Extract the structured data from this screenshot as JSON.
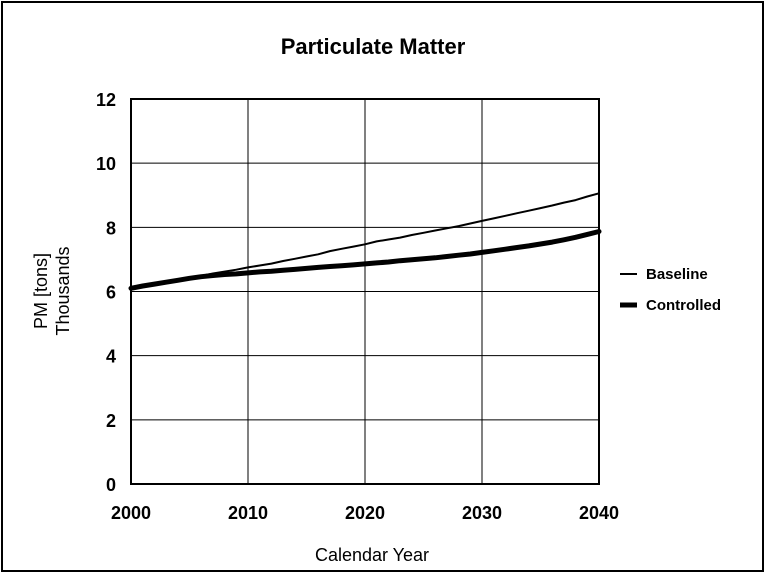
{
  "chart_data": {
    "type": "line",
    "title": "Particulate Matter",
    "xlabel": "Calendar Year",
    "ylabel_line1": "PM [tons]",
    "ylabel_line2": "Thousands",
    "xlim": [
      2000,
      2040
    ],
    "ylim": [
      0,
      12
    ],
    "xticks": [
      2000,
      2010,
      2020,
      2030,
      2040
    ],
    "yticks": [
      0,
      2,
      4,
      6,
      8,
      10,
      12
    ],
    "grid": true,
    "legend_position": "right",
    "x": [
      2000,
      2001,
      2002,
      2003,
      2004,
      2005,
      2006,
      2007,
      2008,
      2009,
      2010,
      2011,
      2012,
      2013,
      2014,
      2015,
      2016,
      2017,
      2018,
      2019,
      2020,
      2021,
      2022,
      2023,
      2024,
      2025,
      2026,
      2027,
      2028,
      2029,
      2030,
      2031,
      2032,
      2033,
      2034,
      2035,
      2036,
      2037,
      2038,
      2039,
      2040
    ],
    "series": [
      {
        "name": "Baseline",
        "line_width": 2,
        "values": [
          6.12,
          6.19,
          6.25,
          6.31,
          6.37,
          6.43,
          6.49,
          6.56,
          6.62,
          6.68,
          6.75,
          6.81,
          6.87,
          6.95,
          7.02,
          7.09,
          7.16,
          7.26,
          7.33,
          7.4,
          7.47,
          7.56,
          7.62,
          7.68,
          7.76,
          7.83,
          7.9,
          7.97,
          8.04,
          8.12,
          8.2,
          8.28,
          8.36,
          8.44,
          8.52,
          8.6,
          8.68,
          8.77,
          8.85,
          8.96,
          9.06
        ]
      },
      {
        "name": "Controlled",
        "line_width": 5,
        "values": [
          6.1,
          6.17,
          6.23,
          6.29,
          6.35,
          6.41,
          6.46,
          6.5,
          6.53,
          6.55,
          6.58,
          6.61,
          6.63,
          6.66,
          6.69,
          6.72,
          6.75,
          6.78,
          6.8,
          6.83,
          6.86,
          6.89,
          6.92,
          6.96,
          6.99,
          7.02,
          7.05,
          7.09,
          7.13,
          7.17,
          7.22,
          7.27,
          7.32,
          7.37,
          7.42,
          7.48,
          7.54,
          7.61,
          7.69,
          7.78,
          7.87
        ]
      }
    ]
  }
}
